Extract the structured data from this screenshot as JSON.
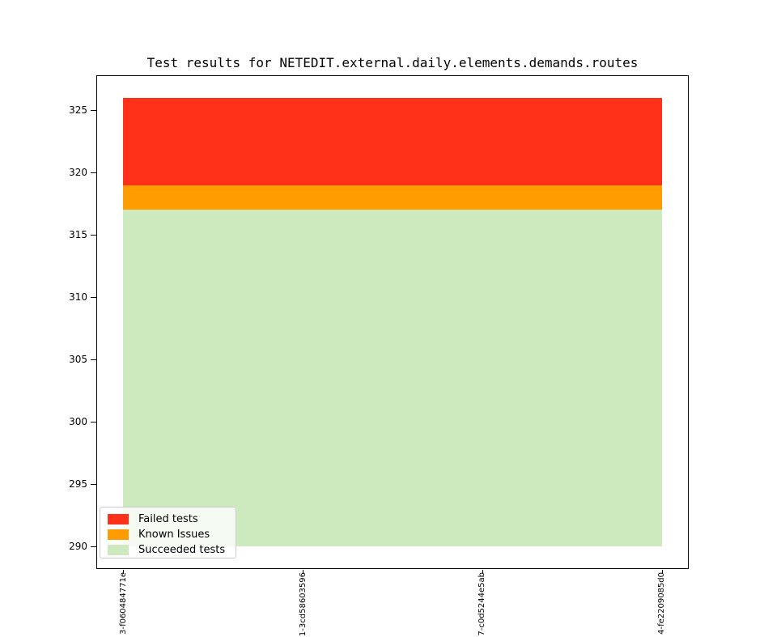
{
  "chart_data": {
    "type": "area",
    "title": "Test results for NETEDIT.external.daily.elements.demands.routes",
    "x_tick_labels": [
      "3-f060484771e",
      "1-3cd58603596",
      "7-c0d5244e5ab",
      "4-fe2209085d0"
    ],
    "x_points": [
      0,
      1,
      2,
      3
    ],
    "xlim": [
      -0.15,
      3.15
    ],
    "y_ticks": [
      290,
      295,
      300,
      305,
      310,
      315,
      320,
      325
    ],
    "ylim": [
      288.2,
      327.8
    ],
    "baseline": 290,
    "series": [
      {
        "name": "Succeeded tests",
        "color": "#cdeabe",
        "lower": 290,
        "upper": 317
      },
      {
        "name": "Known Issues",
        "color": "#ff9d00",
        "lower": 317,
        "upper": 319
      },
      {
        "name": "Failed tests",
        "color": "#ff3118",
        "lower": 319,
        "upper": 326
      }
    ],
    "totals": {
      "succeeded": 317,
      "known_issues": 2,
      "failed": 7,
      "total": 326
    },
    "legend_position": "lower left",
    "grid": false
  },
  "legend": {
    "entries": [
      {
        "label": "Failed tests",
        "color": "#ff3118"
      },
      {
        "label": "Known Issues",
        "color": "#ff9d00"
      },
      {
        "label": "Succeeded tests",
        "color": "#cdeabe"
      }
    ]
  }
}
